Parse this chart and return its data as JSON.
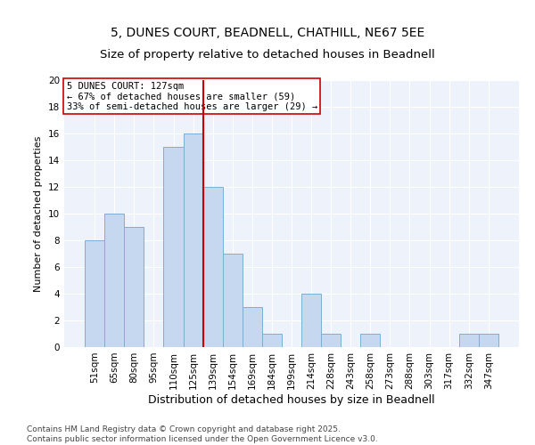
{
  "title": "5, DUNES COURT, BEADNELL, CHATHILL, NE67 5EE",
  "subtitle": "Size of property relative to detached houses in Beadnell",
  "xlabel": "Distribution of detached houses by size in Beadnell",
  "ylabel": "Number of detached properties",
  "categories": [
    "51sqm",
    "65sqm",
    "80sqm",
    "95sqm",
    "110sqm",
    "125sqm",
    "139sqm",
    "154sqm",
    "169sqm",
    "184sqm",
    "199sqm",
    "214sqm",
    "228sqm",
    "243sqm",
    "258sqm",
    "273sqm",
    "288sqm",
    "303sqm",
    "317sqm",
    "332sqm",
    "347sqm"
  ],
  "values": [
    8,
    10,
    9,
    0,
    15,
    16,
    12,
    7,
    3,
    1,
    0,
    4,
    1,
    0,
    1,
    0,
    0,
    0,
    0,
    1,
    1
  ],
  "bar_color": "#c5d8f0",
  "bar_edge_color": "#7aafd4",
  "vline_color": "#cc0000",
  "vline_x_index": 5,
  "annotation_text": "5 DUNES COURT: 127sqm\n← 67% of detached houses are smaller (59)\n33% of semi-detached houses are larger (29) →",
  "annotation_box_color": "#ffffff",
  "annotation_box_edge": "#cc0000",
  "ylim": [
    0,
    20
  ],
  "yticks": [
    0,
    2,
    4,
    6,
    8,
    10,
    12,
    14,
    16,
    18,
    20
  ],
  "fig_bg_color": "#ffffff",
  "plot_bg_color": "#eef2fa",
  "footer": "Contains HM Land Registry data © Crown copyright and database right 2025.\nContains public sector information licensed under the Open Government Licence v3.0.",
  "title_fontsize": 10,
  "xlabel_fontsize": 9,
  "ylabel_fontsize": 8,
  "tick_fontsize": 7.5,
  "footer_fontsize": 6.5,
  "annotation_fontsize": 7.5
}
